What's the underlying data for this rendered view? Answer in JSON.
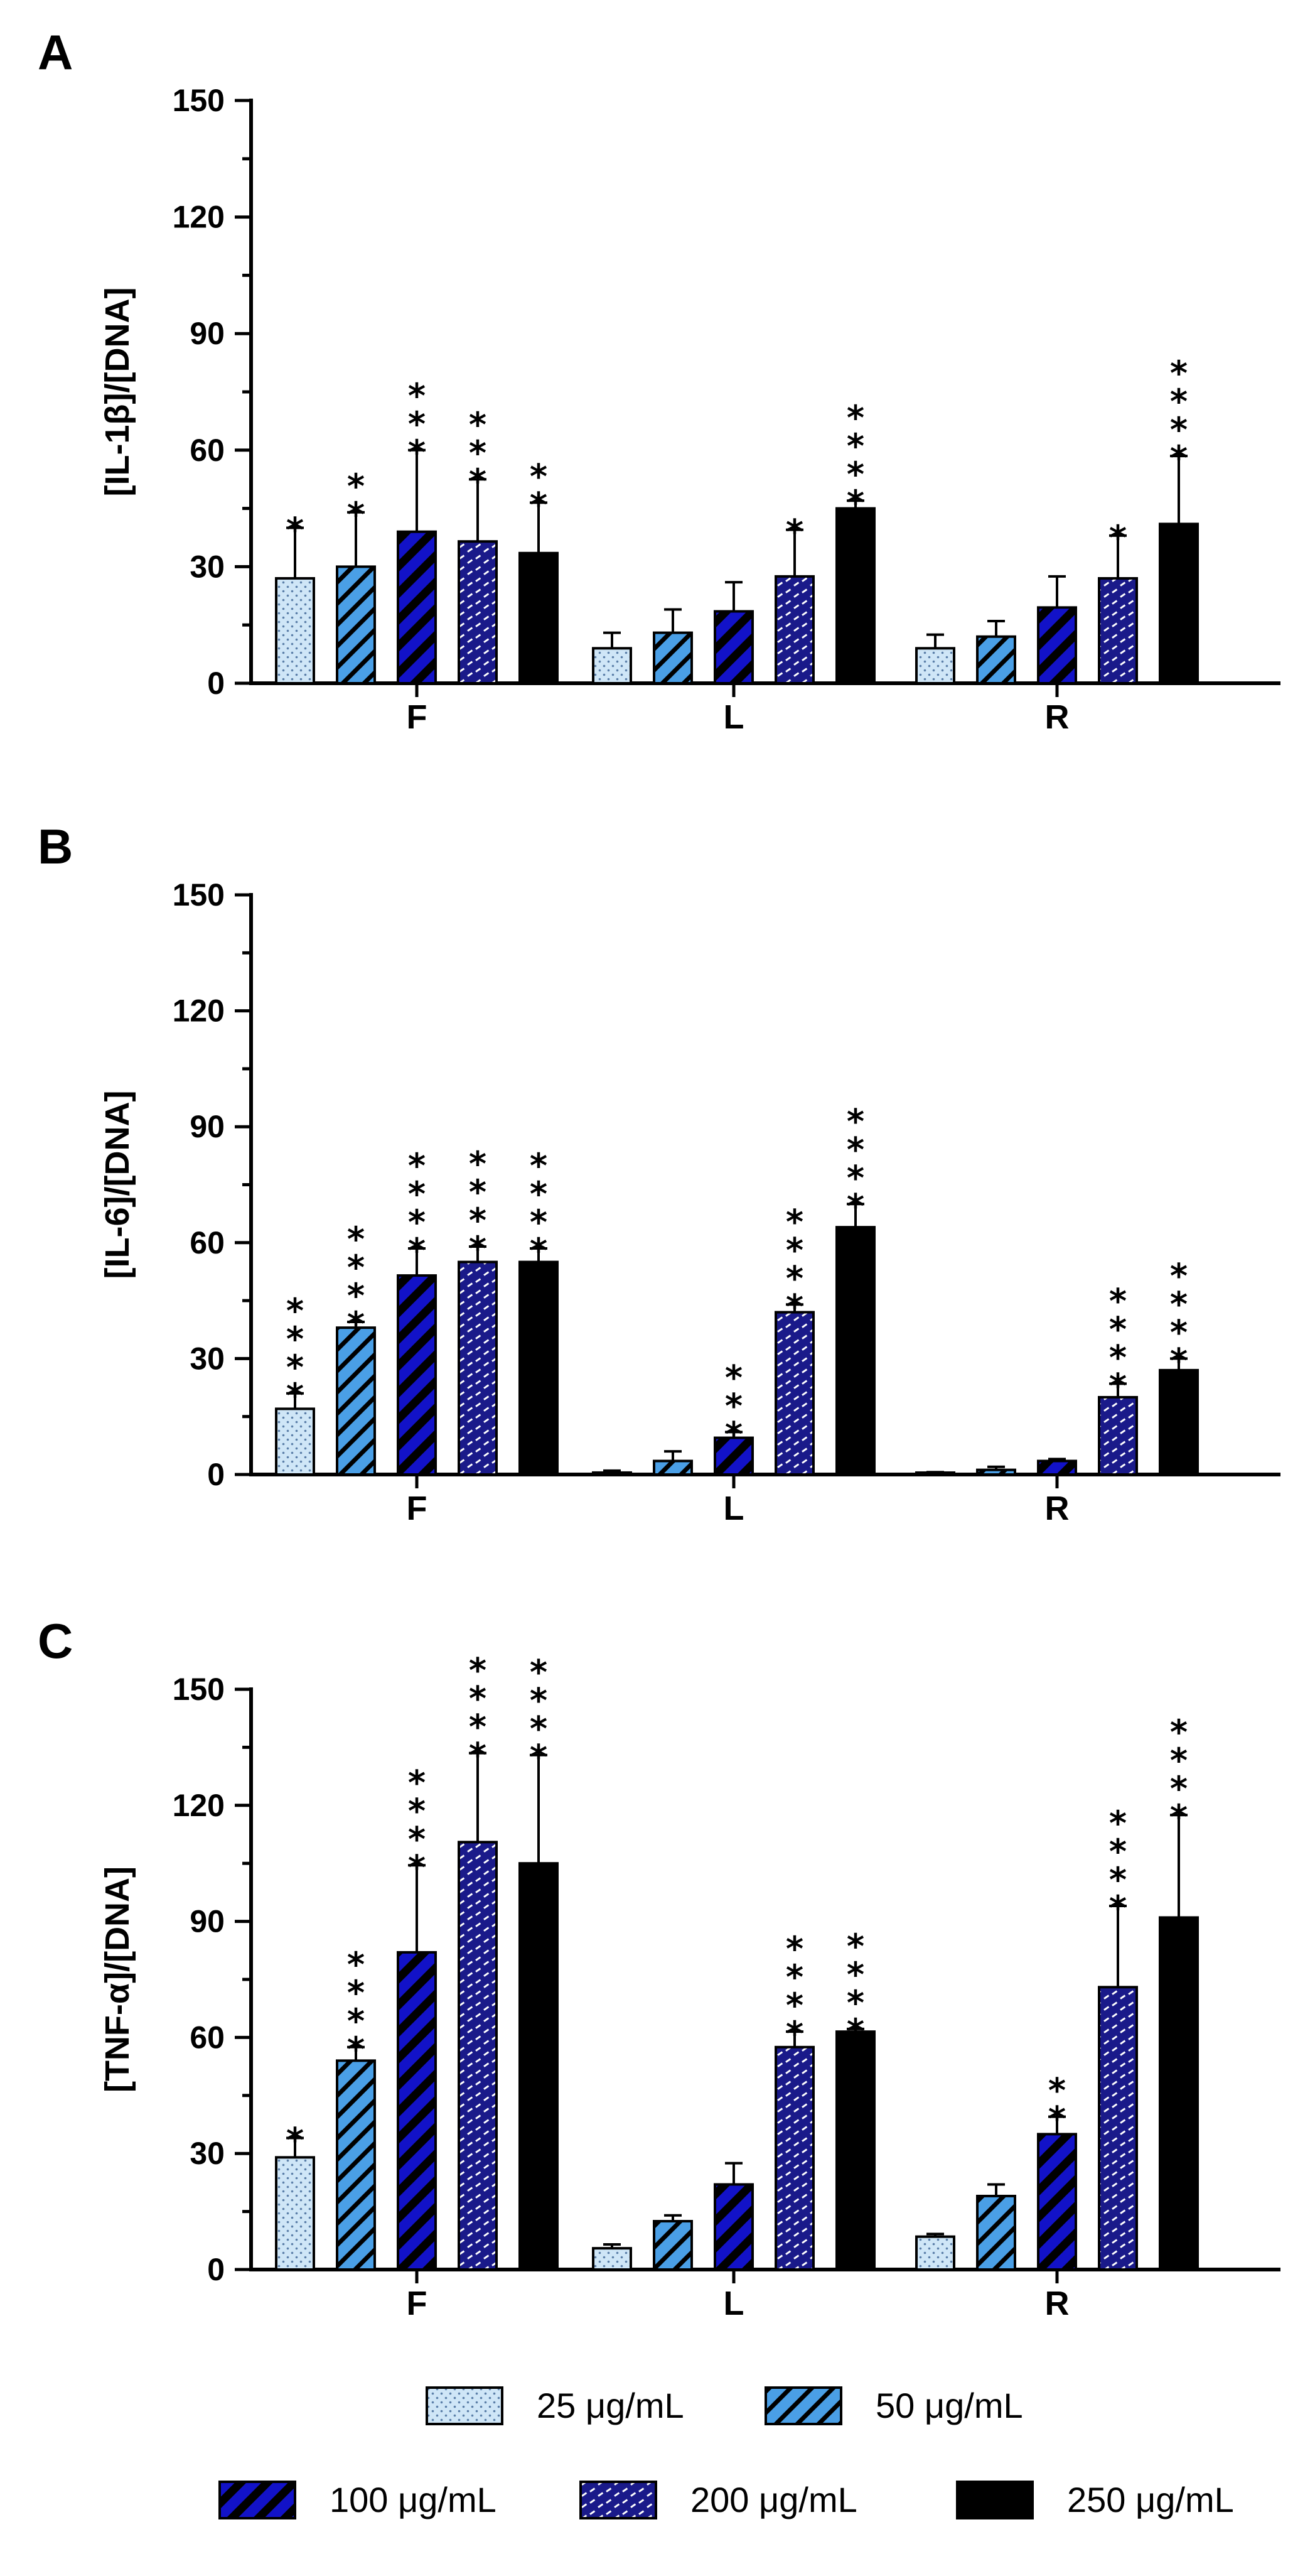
{
  "colors": {
    "c25_bg": "#cfe6f7",
    "c25_dot": "#5a7ea8",
    "c50": "#4a9fe6",
    "c100": "#1212c8",
    "c200_bg": "#1a1a8a",
    "c250": "#000000"
  },
  "legend": {
    "items": [
      {
        "label": "25 μg/mL",
        "pattern": "p25"
      },
      {
        "label": "50 μg/mL",
        "pattern": "p50"
      },
      {
        "label": "100 μg/mL",
        "pattern": "p100"
      },
      {
        "label": "200 μg/mL",
        "pattern": "p200"
      },
      {
        "label": "250 μg/mL",
        "pattern": "p250"
      }
    ]
  },
  "chart_data": [
    {
      "type": "bar",
      "panel": "A",
      "ylabel": "[IL-1β]/[DNA]",
      "ylim": [
        0,
        150
      ],
      "yticks": [
        0,
        30,
        60,
        90,
        120,
        150
      ],
      "categories": [
        "F",
        "L",
        "R"
      ],
      "series": [
        {
          "name": "25 μg/mL",
          "values": [
            27,
            9,
            9
          ],
          "errors": [
            13,
            4,
            3.5
          ],
          "stars": [
            "*",
            "",
            ""
          ]
        },
        {
          "name": "50 μg/mL",
          "values": [
            30,
            13,
            12
          ],
          "errors": [
            14,
            6,
            4
          ],
          "stars": [
            "**",
            "",
            ""
          ]
        },
        {
          "name": "100 μg/mL",
          "values": [
            39,
            18.5,
            19.5
          ],
          "errors": [
            21,
            7.5,
            8
          ],
          "stars": [
            "***",
            "",
            ""
          ]
        },
        {
          "name": "200 μg/mL",
          "values": [
            36.5,
            27.5,
            27
          ],
          "errors": [
            16,
            12,
            11
          ],
          "stars": [
            "***",
            "*",
            "*"
          ]
        },
        {
          "name": "250 μg/mL",
          "values": [
            33.5,
            45,
            41
          ],
          "errors": [
            13,
            2,
            17.5
          ],
          "stars": [
            "**",
            "****",
            "****"
          ]
        }
      ]
    },
    {
      "type": "bar",
      "panel": "B",
      "ylabel": "[IL-6]/[DNA]",
      "ylim": [
        0,
        150
      ],
      "yticks": [
        0,
        30,
        60,
        90,
        120,
        150
      ],
      "categories": [
        "F",
        "L",
        "R"
      ],
      "series": [
        {
          "name": "25 μg/mL",
          "values": [
            17,
            0.5,
            0.3
          ],
          "errors": [
            4,
            0.5,
            0.3
          ],
          "stars": [
            "****",
            "",
            ""
          ]
        },
        {
          "name": "50 μg/mL",
          "values": [
            38,
            3.5,
            1.2
          ],
          "errors": [
            1.5,
            2.5,
            0.8
          ],
          "stars": [
            "****",
            "",
            ""
          ]
        },
        {
          "name": "100 μg/mL",
          "values": [
            51.5,
            9.5,
            3.5
          ],
          "errors": [
            7,
            1.5,
            0.5
          ],
          "stars": [
            "****",
            "***",
            ""
          ]
        },
        {
          "name": "200 μg/mL",
          "values": [
            55,
            42,
            20
          ],
          "errors": [
            4,
            2,
            3.5
          ],
          "stars": [
            "****",
            "****",
            "****"
          ]
        },
        {
          "name": "250 μg/mL",
          "values": [
            55,
            64,
            27
          ],
          "errors": [
            3.5,
            6,
            3
          ],
          "stars": [
            "****",
            "****",
            "****"
          ]
        }
      ]
    },
    {
      "type": "bar",
      "panel": "C",
      "ylabel": "[TNF-α]/[DNA]",
      "ylim": [
        0,
        150
      ],
      "yticks": [
        0,
        30,
        60,
        90,
        120,
        150
      ],
      "categories": [
        "F",
        "L",
        "R"
      ],
      "series": [
        {
          "name": "25 μg/mL",
          "values": [
            29,
            5.5,
            8.5
          ],
          "errors": [
            5,
            1,
            0.7
          ],
          "stars": [
            "*",
            "",
            ""
          ]
        },
        {
          "name": "50 μg/mL",
          "values": [
            54,
            12.5,
            19
          ],
          "errors": [
            3.5,
            1.5,
            3
          ],
          "stars": [
            "****",
            "",
            ""
          ]
        },
        {
          "name": "100 μg/mL",
          "values": [
            82,
            22,
            35
          ],
          "errors": [
            22.5,
            5.5,
            4.5
          ],
          "stars": [
            "****",
            "",
            "**"
          ]
        },
        {
          "name": "200 μg/mL",
          "values": [
            110.5,
            57.5,
            73
          ],
          "errors": [
            23,
            4,
            21
          ],
          "stars": [
            "****",
            "****",
            "****"
          ]
        },
        {
          "name": "250 μg/mL",
          "values": [
            105,
            61.5,
            91
          ],
          "errors": [
            28,
            0.7,
            26.5
          ],
          "stars": [
            "****",
            "****",
            "****"
          ]
        }
      ]
    }
  ]
}
